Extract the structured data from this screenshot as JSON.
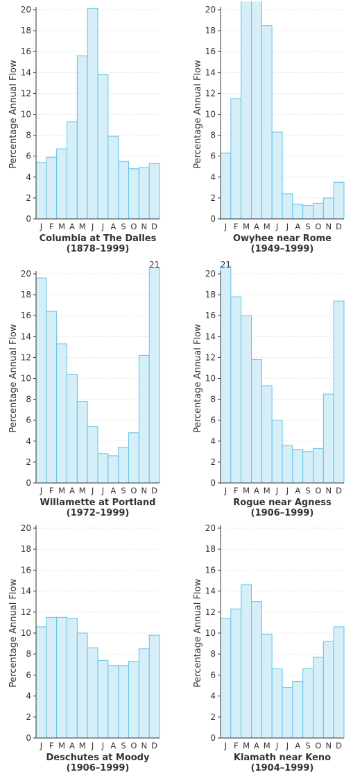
{
  "chart_data": [
    {
      "type": "bar",
      "title": "Columbia at The Dalles",
      "subtitle": "(1878–1999)",
      "ylabel": "Percentage Annual Flow",
      "categories": [
        "J",
        "F",
        "M",
        "A",
        "M",
        "J",
        "J",
        "A",
        "S",
        "O",
        "N",
        "D"
      ],
      "values": [
        5.4,
        5.9,
        6.7,
        9.3,
        15.6,
        20.1,
        13.8,
        7.9,
        5.5,
        4.8,
        4.9,
        5.3
      ],
      "ylim": [
        0,
        20
      ],
      "yticks": [
        "0",
        "2",
        "4",
        "6",
        "8",
        "10",
        "12",
        "14",
        "16",
        "18",
        "20"
      ],
      "annotation": ""
    },
    {
      "type": "bar",
      "title": "Owyhee near Rome",
      "subtitle": "(1949–1999)",
      "ylabel": "Percentage Annual Flow",
      "categories": [
        "J",
        "F",
        "M",
        "A",
        "M",
        "J",
        "J",
        "A",
        "S",
        "O",
        "N",
        "D"
      ],
      "values": [
        6.3,
        11.5,
        21,
        21,
        18.5,
        8.3,
        2.4,
        1.4,
        1.3,
        1.5,
        2.0,
        3.5
      ],
      "ylim": [
        0,
        20
      ],
      "yticks": [
        "0",
        "2",
        "4",
        "6",
        "8",
        "10",
        "12",
        "14",
        "16",
        "18",
        "20"
      ],
      "annotation": ""
    },
    {
      "type": "bar",
      "title": "Willamette at Portland",
      "subtitle": "(1972–1999)",
      "ylabel": "Percentage Annual Flow",
      "categories": [
        "J",
        "F",
        "M",
        "A",
        "M",
        "J",
        "J",
        "A",
        "S",
        "O",
        "N",
        "D"
      ],
      "values": [
        19.6,
        16.4,
        13.3,
        10.4,
        7.8,
        5.4,
        2.8,
        2.6,
        3.4,
        4.8,
        12.2,
        20.6
      ],
      "ylim": [
        0,
        20
      ],
      "yticks": [
        "0",
        "2",
        "4",
        "6",
        "8",
        "10",
        "12",
        "14",
        "16",
        "18",
        "20"
      ],
      "annotation": "21"
    },
    {
      "type": "bar",
      "title": "Rogue near Agness",
      "subtitle": "(1906–1999)",
      "ylabel": "Percentage Annual Flow",
      "categories": [
        "J",
        "F",
        "M",
        "A",
        "M",
        "J",
        "J",
        "A",
        "S",
        "O",
        "N",
        "D"
      ],
      "values": [
        20.9,
        17.8,
        16.0,
        11.8,
        9.3,
        6.0,
        3.6,
        3.2,
        3.0,
        3.3,
        8.5,
        17.4
      ],
      "ylim": [
        0,
        20
      ],
      "yticks": [
        "0",
        "2",
        "4",
        "6",
        "8",
        "10",
        "12",
        "14",
        "16",
        "18",
        "20"
      ],
      "annotation": "21"
    },
    {
      "type": "bar",
      "title": "Deschutes at Moody",
      "subtitle": "(1906–1999)",
      "ylabel": "Percentage Annual Flow",
      "categories": [
        "J",
        "F",
        "M",
        "A",
        "M",
        "J",
        "J",
        "A",
        "S",
        "O",
        "N",
        "D"
      ],
      "values": [
        10.6,
        11.5,
        11.5,
        11.4,
        10.0,
        8.6,
        7.4,
        6.9,
        6.9,
        7.3,
        8.5,
        9.8
      ],
      "ylim": [
        0,
        20
      ],
      "yticks": [
        "0",
        "2",
        "4",
        "6",
        "8",
        "10",
        "12",
        "14",
        "16",
        "18",
        "20"
      ],
      "annotation": ""
    },
    {
      "type": "bar",
      "title": "Klamath near Keno",
      "subtitle": "(1904–1999)",
      "ylabel": "Percentage Annual Flow",
      "categories": [
        "J",
        "F",
        "M",
        "A",
        "M",
        "J",
        "J",
        "A",
        "S",
        "O",
        "N",
        "D"
      ],
      "values": [
        11.4,
        12.3,
        14.6,
        13.0,
        9.9,
        6.6,
        4.8,
        5.4,
        6.6,
        7.7,
        9.2,
        10.6
      ],
      "ylim": [
        0,
        20
      ],
      "yticks": [
        "0",
        "2",
        "4",
        "6",
        "8",
        "10",
        "12",
        "14",
        "16",
        "18",
        "20"
      ],
      "annotation": ""
    }
  ]
}
